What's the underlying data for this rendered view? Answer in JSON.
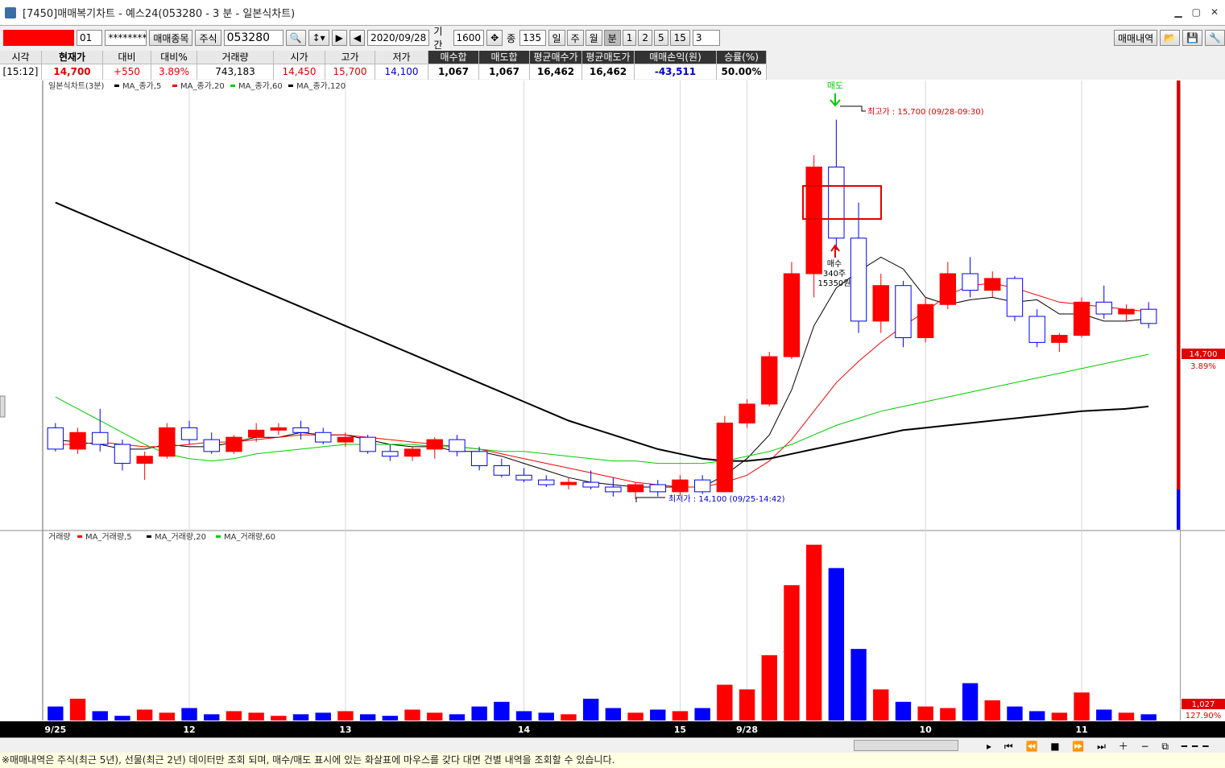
{
  "title_bar": "[7450]매매복기차트 - 예스24(053280 - 3 분 - 일본식차트)",
  "toolbar": {
    "account_suffix": "01",
    "password": "********",
    "trade_item_button": "매매종목",
    "market": "주식",
    "code": "053280",
    "date": "2020/09/28",
    "period_label": "기간",
    "period": "1600",
    "count_label": "종",
    "count": "135",
    "units": [
      "일",
      "주",
      "월",
      "분",
      "1",
      "2",
      "5",
      "15"
    ],
    "interval": "3",
    "history_button": "매매내역"
  },
  "info_table": {
    "headers": [
      "시각",
      "현재가",
      "대비",
      "대비%",
      "거래량",
      "시가",
      "고가",
      "저가",
      "매수합",
      "매도합",
      "평균매수가",
      "평균매도가",
      "매매손익(원)",
      "승률(%)"
    ],
    "values": [
      "[15:12]",
      "14,700",
      "+550",
      "3.89%",
      "743,183",
      "14,450",
      "15,700",
      "14,100",
      "1,067",
      "1,067",
      "16,462",
      "16,462",
      "-43,511",
      "50.00%"
    ]
  },
  "chart_data": [
    {
      "type": "candlestick",
      "title": "일본식차트(3분)",
      "categories": [
        "9/25",
        null,
        null,
        null,
        null,
        null,
        "12",
        null,
        null,
        null,
        null,
        null,
        null,
        "13",
        null,
        null,
        null,
        null,
        null,
        null,
        null,
        "14",
        null,
        null,
        null,
        null,
        null,
        null,
        "15",
        null,
        null,
        "9/28",
        null,
        null,
        null,
        null,
        null,
        null,
        null,
        "10",
        null,
        null,
        null,
        null,
        null,
        null,
        "11",
        null,
        null,
        null
      ],
      "ohlc": [
        [
          14400,
          14420,
          14300,
          14310
        ],
        [
          14310,
          14400,
          14290,
          14380
        ],
        [
          14380,
          14480,
          14300,
          14330
        ],
        [
          14330,
          14350,
          14220,
          14250
        ],
        [
          14250,
          14300,
          14180,
          14280
        ],
        [
          14280,
          14420,
          14270,
          14400
        ],
        [
          14400,
          14430,
          14330,
          14350
        ],
        [
          14350,
          14380,
          14290,
          14300
        ],
        [
          14300,
          14370,
          14290,
          14360
        ],
        [
          14360,
          14420,
          14340,
          14390
        ],
        [
          14390,
          14420,
          14370,
          14400
        ],
        [
          14400,
          14430,
          14350,
          14380
        ],
        [
          14380,
          14400,
          14330,
          14340
        ],
        [
          14340,
          14380,
          14320,
          14360
        ],
        [
          14360,
          14370,
          14290,
          14300
        ],
        [
          14300,
          14330,
          14260,
          14280
        ],
        [
          14280,
          14320,
          14260,
          14310
        ],
        [
          14310,
          14360,
          14270,
          14350
        ],
        [
          14350,
          14370,
          14280,
          14300
        ],
        [
          14300,
          14320,
          14220,
          14240
        ],
        [
          14240,
          14270,
          14190,
          14200
        ],
        [
          14200,
          14230,
          14170,
          14180
        ],
        [
          14180,
          14200,
          14150,
          14160
        ],
        [
          14160,
          14190,
          14140,
          14170
        ],
        [
          14170,
          14220,
          14140,
          14150
        ],
        [
          14150,
          14190,
          14110,
          14130
        ],
        [
          14130,
          14170,
          14100,
          14160
        ],
        [
          14160,
          14180,
          14110,
          14130
        ],
        [
          14130,
          14200,
          14110,
          14180
        ],
        [
          14180,
          14200,
          14120,
          14130
        ],
        [
          14130,
          14450,
          14130,
          14420
        ],
        [
          14420,
          14520,
          14400,
          14500
        ],
        [
          14500,
          14720,
          14490,
          14700
        ],
        [
          14700,
          15100,
          14690,
          15050
        ],
        [
          15050,
          15550,
          14950,
          15500
        ],
        [
          15500,
          15700,
          15150,
          15200
        ],
        [
          15200,
          15350,
          14800,
          14850
        ],
        [
          14850,
          15050,
          14800,
          15000
        ],
        [
          15000,
          15020,
          14740,
          14780
        ],
        [
          14780,
          14950,
          14760,
          14920
        ],
        [
          14920,
          15100,
          14900,
          15050
        ],
        [
          15050,
          15120,
          14950,
          14980
        ],
        [
          14980,
          15060,
          14950,
          15030
        ],
        [
          15030,
          15040,
          14850,
          14870
        ],
        [
          14870,
          14900,
          14740,
          14760
        ],
        [
          14760,
          14800,
          14720,
          14790
        ],
        [
          14790,
          14950,
          14780,
          14930
        ],
        [
          14930,
          15000,
          14860,
          14880
        ],
        [
          14880,
          14920,
          14850,
          14900
        ],
        [
          14900,
          14930,
          14820,
          14840
        ]
      ],
      "up_color": "#ff0000",
      "down_color": "#0000ff",
      "ylim": [
        13970,
        15865
      ],
      "series": [
        {
          "name": "MA_종가,5",
          "color": "#000000",
          "values": [
            14350,
            14340,
            14330,
            14310,
            14310,
            14330,
            14320,
            14320,
            14340,
            14360,
            14360,
            14380,
            14370,
            14370,
            14350,
            14330,
            14320,
            14320,
            14300,
            14300,
            14280,
            14250,
            14220,
            14190,
            14170,
            14160,
            14150,
            14150,
            14150,
            14150,
            14200,
            14270,
            14370,
            14560,
            14830,
            14990,
            15060,
            15120,
            15070,
            14950,
            14920,
            14940,
            14950,
            14930,
            14940,
            14880,
            14880,
            14850,
            14850,
            14860
          ]
        },
        {
          "name": "MA_종가,20",
          "color": "#ff0000",
          "values": [
            14330,
            14330,
            14340,
            14330,
            14320,
            14320,
            14330,
            14340,
            14340,
            14350,
            14360,
            14370,
            14370,
            14370,
            14360,
            14350,
            14340,
            14330,
            14320,
            14310,
            14290,
            14270,
            14250,
            14230,
            14210,
            14190,
            14170,
            14160,
            14150,
            14150,
            14170,
            14200,
            14260,
            14350,
            14470,
            14590,
            14680,
            14760,
            14830,
            14890,
            14960,
            15000,
            15010,
            14990,
            14960,
            14930,
            14920,
            14910,
            14900,
            14890
          ]
        },
        {
          "name": "MA_종가,60",
          "color": "#00cc00",
          "values": [
            14530,
            14480,
            14430,
            14380,
            14330,
            14290,
            14270,
            14260,
            14270,
            14290,
            14300,
            14310,
            14320,
            14330,
            14330,
            14330,
            14330,
            14320,
            14320,
            14310,
            14300,
            14300,
            14290,
            14280,
            14270,
            14260,
            14260,
            14250,
            14250,
            14250,
            14260,
            14280,
            14300,
            14330,
            14370,
            14410,
            14440,
            14470,
            14490,
            14510,
            14530,
            14550,
            14570,
            14590,
            14610,
            14630,
            14650,
            14670,
            14690,
            14710
          ]
        },
        {
          "name": "MA_종가,120",
          "color": "#000000",
          "values": [
            15350,
            15310,
            15270,
            15230,
            15190,
            15150,
            15110,
            15070,
            15030,
            14990,
            14950,
            14910,
            14870,
            14830,
            14790,
            14750,
            14710,
            14670,
            14630,
            14590,
            14550,
            14510,
            14470,
            14430,
            14400,
            14370,
            14340,
            14310,
            14290,
            14270,
            14260,
            14260,
            14270,
            14290,
            14310,
            14330,
            14350,
            14370,
            14390,
            14400,
            14410,
            14420,
            14430,
            14440,
            14450,
            14460,
            14470,
            14475,
            14480,
            14490
          ]
        }
      ]
    },
    {
      "type": "bar",
      "title": "거래량",
      "legend": [
        "MA_거래량,5",
        "MA_거래량,20",
        "MA_거래량,60"
      ],
      "legend_colors": [
        "#ff0000",
        "#000000",
        "#00cc00"
      ],
      "values": [
        900,
        1400,
        600,
        300,
        700,
        500,
        800,
        400,
        600,
        500,
        300,
        400,
        500,
        600,
        400,
        300,
        700,
        500,
        400,
        900,
        1200,
        600,
        500,
        400,
        1400,
        800,
        500,
        700,
        600,
        800,
        2300,
        2000,
        4200,
        8700,
        11300,
        9800,
        4600,
        2000,
        1200,
        900,
        800,
        2400,
        1300,
        900,
        600,
        500,
        1800,
        700,
        500,
        400
      ],
      "ylim": [
        0,
        11800
      ]
    }
  ],
  "annotations": {
    "sell": "매도",
    "high": "최고가 : 15,700 (09/28-09:30)",
    "buy": [
      "매수",
      "340주",
      "15350원"
    ],
    "low": "최저가 : 14,100 (09/25-14:42)",
    "price_last": "14,700",
    "price_pct": "3.89%",
    "volume_last": "1,027",
    "volume_pct": "127.90%"
  },
  "footer": "※매매내역은 주식(최근 5년), 선물(최근 2년) 데이터만 조회 되며, 매수/매도 표시에 있는 화살표에 마우스를 갖다 대면 건별 내역을 조회할 수 있습니다."
}
